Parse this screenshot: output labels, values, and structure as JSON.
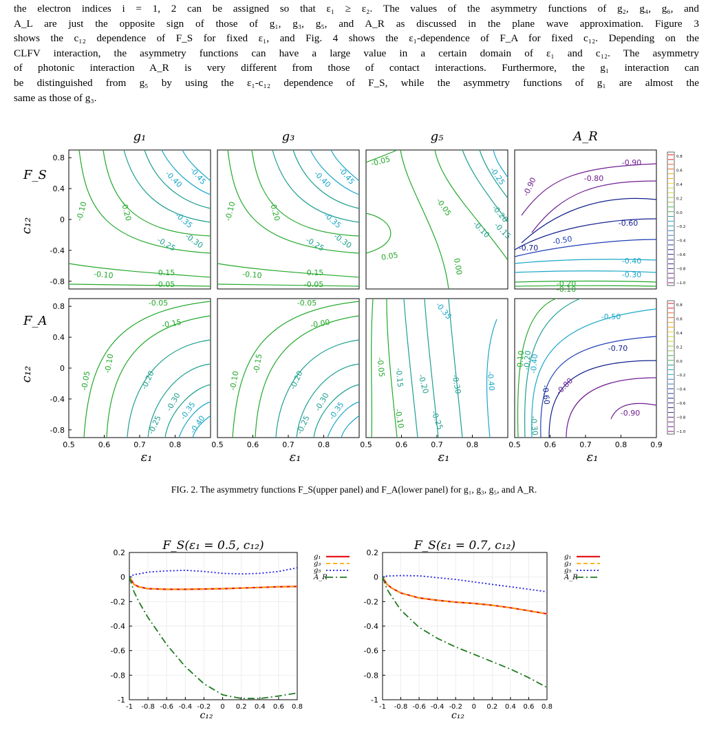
{
  "paragraph": {
    "lines": [
      "the electron indices i = 1, 2 can be assigned so that ε₁ ≥ ε₂. The values of the asymmetry functions of g₂, g₄, g₆, and",
      "A_L are just the opposite sign of those of g₁, g₃, g₅, and A_R as discussed in the plane wave approximation. Figure 3",
      "shows the c₁₂ dependence of F_S for fixed ε₁, and Fig. 4 shows the ε₁-dependence of F_A for fixed c₁₂. Depending on the",
      "CLFV interaction, the asymmetry functions can have a large value in a certain domain of ε₁ and c₁₂. The asymmetry",
      "of photonic interaction A_R is very different from those of contact interactions. Furthermore, the g₁ interaction can",
      "be distinguished from g₅ by using the ε₁-c₁₂ dependence of F_S, while the asymmetry functions of g₁ are almost the",
      "same as those of g₃."
    ]
  },
  "figure2": {
    "caption": "FIG. 2. The asymmetry functions F_S(upper panel) and F_A(lower panel) for g₁, g₃, g₅, and A_R.",
    "column_titles": [
      "g₁",
      "g₃",
      "g₅",
      "A_R"
    ],
    "row_labels": [
      "F_S",
      "F_A"
    ],
    "ylabel": "c₁₂",
    "xlabel": "ε₁",
    "y_ticks": [
      "0.8",
      "0.4",
      "0",
      "-0.4",
      "-0.8"
    ],
    "x_ticks": [
      "0.5",
      "0.6",
      "0.7",
      "0.8"
    ],
    "x_tick_last": "0.9",
    "colorbar_ticks": [
      "0.8",
      "0.6",
      "0.4",
      "0.2",
      "0.0",
      "−0.2",
      "−0.4",
      "−0.6",
      "−0.8",
      "−1.0"
    ],
    "contour_labels": {
      "FS_g1": [
        "-0.45",
        "-0.40",
        "-0.35",
        "-0.30",
        "-0.25",
        "-0.20",
        "-0.10",
        "-0.10",
        "-0.15",
        "-0.05"
      ],
      "FS_g3": [
        "-0.45",
        "-0.40",
        "-0.35",
        "-0.30",
        "-0.25",
        "-0.20",
        "-0.10",
        "-0.10",
        "-0.15",
        "-0.05"
      ],
      "FS_g5": [
        "-0.05",
        "-0.25",
        "-0.20",
        "-0.15",
        "-0.10",
        "-0.05",
        "0.05",
        "0.00"
      ],
      "FS_AR": [
        "-0.90",
        "-0.80",
        "-0.90",
        "-0.60",
        "-0.70",
        "-0.50",
        "-0.40",
        "-0.30",
        "-0.20",
        "-0.10"
      ],
      "FA_g1": [
        "-0.05",
        "-0.15",
        "-0.10",
        "-0.05",
        "-0.20",
        "-0.25",
        "-0.30",
        "-0.35",
        "-0.40"
      ],
      "FA_g3": [
        "-0.05",
        "-0.00",
        "-0.15",
        "-0.10",
        "-0.20",
        "-0.25",
        "-0.30",
        "-0.35"
      ],
      "FA_g5": [
        "-0.35",
        "-0.05",
        "-0.15",
        "-0.20",
        "-0.30",
        "-0.40",
        "-0.10",
        "-0.25"
      ],
      "FA_AR": [
        "-0.50",
        "-0.70",
        "-0.80",
        "-0.90",
        "-0.10",
        "-0.20",
        "-0.40",
        "-0.60",
        "-0.30"
      ]
    }
  },
  "figure3": {
    "legend": [
      "g₁",
      "g₃",
      "g₅",
      "A_R"
    ],
    "colors": {
      "g1": "#e8141c",
      "g3": "#f7a900",
      "g5": "#1a1ae6",
      "AR": "#1f7a1f"
    },
    "y_ticks": [
      "0.2",
      "0",
      "-0.2",
      "-0.4",
      "-0.6",
      "-0.8",
      "-1"
    ],
    "x_ticks": [
      "-1",
      "-0.8",
      "-0.6",
      "-0.4",
      "-0.2",
      "0",
      "0.2",
      "0.4",
      "0.6",
      "0.8"
    ],
    "xlabel": "c₁₂"
  },
  "chart_data": [
    {
      "type": "line",
      "title": "F_S(ε₁ = 0.5, c₁₂)",
      "xlabel": "c₁₂",
      "ylabel": "",
      "xlim": [
        -1,
        0.8
      ],
      "ylim": [
        -1,
        0.2
      ],
      "grid": true,
      "legend": "right",
      "x": [
        -1,
        -0.95,
        -0.9,
        -0.8,
        -0.6,
        -0.4,
        -0.2,
        0,
        0.2,
        0.4,
        0.6,
        0.8
      ],
      "series": [
        {
          "name": "g₁",
          "values": [
            0,
            -0.06,
            -0.08,
            -0.095,
            -0.1,
            -0.1,
            -0.098,
            -0.095,
            -0.09,
            -0.085,
            -0.08,
            -0.077
          ]
        },
        {
          "name": "g₃",
          "values": [
            0,
            -0.06,
            -0.08,
            -0.095,
            -0.1,
            -0.1,
            -0.098,
            -0.095,
            -0.09,
            -0.085,
            -0.08,
            -0.077
          ]
        },
        {
          "name": "g₅",
          "values": [
            0,
            0.02,
            0.025,
            0.04,
            0.05,
            0.055,
            0.045,
            0.03,
            0.025,
            0.03,
            0.045,
            0.075
          ]
        },
        {
          "name": "A_R",
          "values": [
            0,
            -0.12,
            -0.2,
            -0.33,
            -0.55,
            -0.73,
            -0.87,
            -0.96,
            -0.99,
            -0.99,
            -0.97,
            -0.945
          ]
        }
      ]
    },
    {
      "type": "line",
      "title": "F_S(ε₁ = 0.7, c₁₂)",
      "xlabel": "c₁₂",
      "ylabel": "",
      "xlim": [
        -1,
        0.8
      ],
      "ylim": [
        -1,
        0.2
      ],
      "grid": true,
      "legend": "right",
      "x": [
        -1,
        -0.95,
        -0.9,
        -0.8,
        -0.6,
        -0.4,
        -0.2,
        0,
        0.2,
        0.4,
        0.6,
        0.8
      ],
      "series": [
        {
          "name": "g₁",
          "values": [
            0,
            -0.06,
            -0.09,
            -0.13,
            -0.17,
            -0.19,
            -0.205,
            -0.215,
            -0.23,
            -0.25,
            -0.275,
            -0.3
          ]
        },
        {
          "name": "g₃",
          "values": [
            0,
            -0.06,
            -0.09,
            -0.13,
            -0.17,
            -0.19,
            -0.205,
            -0.215,
            -0.23,
            -0.25,
            -0.275,
            -0.3
          ]
        },
        {
          "name": "g₅",
          "values": [
            0,
            0.008,
            0.01,
            0.012,
            0.01,
            -0.005,
            -0.02,
            -0.04,
            -0.06,
            -0.08,
            -0.1,
            -0.12
          ]
        },
        {
          "name": "A_R",
          "values": [
            0,
            -0.1,
            -0.16,
            -0.27,
            -0.41,
            -0.5,
            -0.57,
            -0.63,
            -0.69,
            -0.75,
            -0.82,
            -0.9
          ]
        }
      ]
    }
  ]
}
